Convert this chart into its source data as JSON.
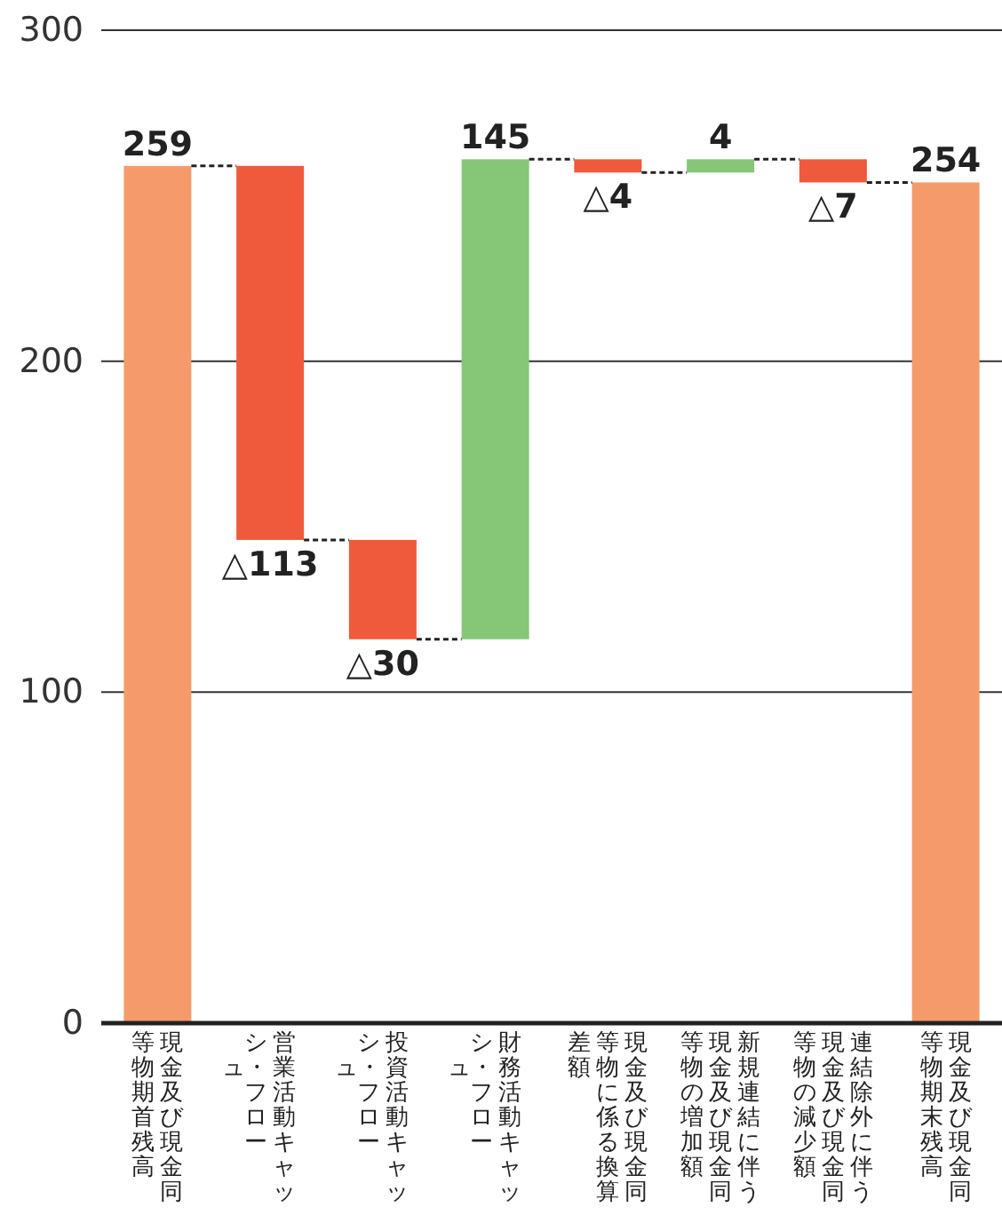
{
  "chart_data": {
    "type": "bar",
    "categories": [
      "現金及び現金同等物期首残高",
      "営業活動キャッシュ・フロー",
      "投資活動キャッシュ・フロー",
      "財務活動キャッシュ・フロー",
      "現金及び現金同等物に係る換算差額",
      "新規連結に伴う現金及び現金同等物の増加額",
      "連結除外に伴う現金及び現金同等物の減少額",
      "現金及び現金同等物期末残高"
    ],
    "values": [
      259,
      -113,
      -30,
      145,
      -4,
      4,
      -7,
      254
    ],
    "base": [
      0,
      259,
      146,
      116,
      261,
      257,
      261,
      0
    ],
    "colors": [
      "#f59b6b",
      "#ef5a3c",
      "#ef5a3c",
      "#85c777",
      "#ef5a3c",
      "#85c777",
      "#ef5a3c",
      "#f59b6b"
    ],
    "value_labels": [
      "259",
      "△113",
      "△30",
      "145",
      "△4",
      "4",
      "△7",
      "254"
    ],
    "ylim": [
      0,
      300
    ],
    "yticks": [
      0,
      100,
      200,
      300
    ],
    "grid": "y"
  }
}
